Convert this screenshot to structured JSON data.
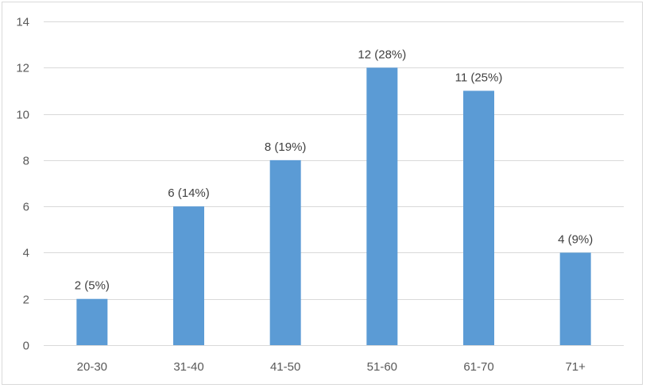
{
  "chart_data": {
    "type": "bar",
    "title": "",
    "xlabel": "",
    "ylabel": "",
    "categories": [
      "20-30",
      "31-40",
      "41-50",
      "51-60",
      "61-70",
      "71+"
    ],
    "values": [
      2,
      6,
      8,
      12,
      11,
      4
    ],
    "data_labels": [
      "2 (5%)",
      "6 (14%)",
      "8 (19%)",
      "12 (28%)",
      "11 (25%)",
      "4 (9%)"
    ],
    "ylim": [
      0,
      14
    ],
    "yticks": [
      0,
      2,
      4,
      6,
      8,
      10,
      12,
      14
    ],
    "grid": true,
    "legend": "none",
    "bar_color": "#5b9bd5",
    "grid_color": "#d9d9d9"
  }
}
